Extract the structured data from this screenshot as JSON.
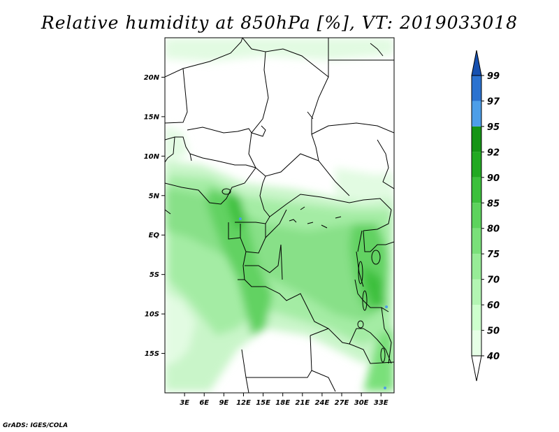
{
  "title": "Relative humidity at 850hPa [%], VT: 2019033018",
  "credit": "GrADS: IGES/COLA",
  "map": {
    "lon_range": [
      0,
      35
    ],
    "lat_range": [
      -20,
      25
    ],
    "lat_ticks": [
      {
        "value": 20,
        "label": "20N"
      },
      {
        "value": 15,
        "label": "15N"
      },
      {
        "value": 10,
        "label": "10N"
      },
      {
        "value": 5,
        "label": "5N"
      },
      {
        "value": 0,
        "label": "EQ"
      },
      {
        "value": -5,
        "label": "5S"
      },
      {
        "value": -10,
        "label": "10S"
      },
      {
        "value": -15,
        "label": "15S"
      }
    ],
    "lon_ticks": [
      {
        "value": 3,
        "label": "3E"
      },
      {
        "value": 6,
        "label": "6E"
      },
      {
        "value": 9,
        "label": "9E"
      },
      {
        "value": 12,
        "label": "12E"
      },
      {
        "value": 15,
        "label": "15E"
      },
      {
        "value": 18,
        "label": "18E"
      },
      {
        "value": 21,
        "label": "21E"
      },
      {
        "value": 24,
        "label": "24E"
      },
      {
        "value": 27,
        "label": "27E"
      },
      {
        "value": 30,
        "label": "30E"
      },
      {
        "value": 33,
        "label": "33E"
      }
    ]
  },
  "colorbar": {
    "levels": [
      "40",
      "50",
      "60",
      "70",
      "75",
      "80",
      "85",
      "90",
      "92",
      "95",
      "97",
      "99"
    ],
    "colors": [
      "#ffffff",
      "#e6ffe6",
      "#cdffcd",
      "#b3f5b3",
      "#97ec97",
      "#7ae07a",
      "#5dd35d",
      "#3cc03c",
      "#22a922",
      "#159415",
      "#4d9ee8",
      "#2b72d0",
      "#1650b0"
    ]
  }
}
